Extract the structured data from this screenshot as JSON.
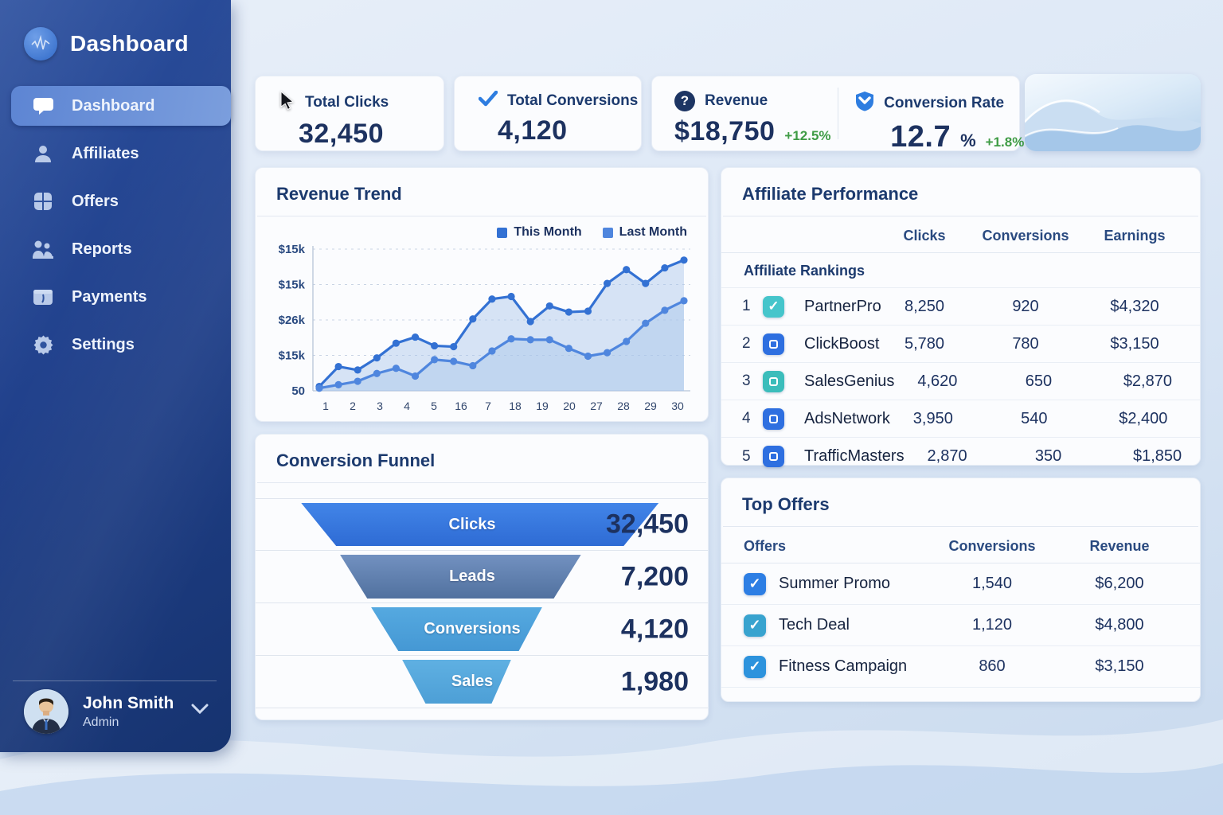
{
  "sidebar": {
    "app_title": "Dashboard",
    "items": [
      {
        "label": "Dashboard",
        "icon": "chat-icon",
        "active": true
      },
      {
        "label": "Affiliates",
        "icon": "person-icon",
        "active": false
      },
      {
        "label": "Offers",
        "icon": "grid-icon",
        "active": false
      },
      {
        "label": "Reports",
        "icon": "people-icon",
        "active": false
      },
      {
        "label": "Payments",
        "icon": "wallet-icon",
        "active": false
      },
      {
        "label": "Settings",
        "icon": "gear-icon",
        "active": false
      }
    ],
    "user": {
      "name": "John Smith",
      "role": "Admin"
    }
  },
  "stats": {
    "total_clicks": {
      "label": "Total Clicks",
      "value": "32,450"
    },
    "total_conversions": {
      "label": "Total Conversions",
      "value": "4,120"
    },
    "revenue": {
      "label": "Revenue",
      "value": "$18,750",
      "delta": "+12.5%"
    },
    "conversion_rate": {
      "label": "Conversion Rate",
      "value": "12.7",
      "unit": "%",
      "delta": "+1.8%"
    }
  },
  "revenue_trend": {
    "title": "Revenue Trend"
  },
  "chart_data": {
    "type": "line",
    "title": "Revenue Trend",
    "legend": [
      "This Month",
      "Last Month"
    ],
    "legend_position": "top-right",
    "grid": true,
    "x_tick_labels": [
      "1",
      "2",
      "3",
      "4",
      "5",
      "16",
      "7",
      "18",
      "19",
      "20",
      "27",
      "28",
      "29",
      "30"
    ],
    "y_tick_labels": [
      "$15k",
      "$15k",
      "$26k",
      "$15k",
      "50"
    ],
    "ylim": [
      0,
      16
    ],
    "unit": "$k (approximate, read from plot)",
    "series": [
      {
        "name": "This Month",
        "color": "#3371d3",
        "values": [
          0.5,
          2.8,
          2.4,
          3.8,
          5.5,
          6.2,
          5.2,
          5.1,
          8.3,
          10.6,
          10.9,
          8.0,
          9.8,
          9.1,
          9.2,
          12.4,
          14.0,
          12.4,
          14.2,
          15.1
        ]
      },
      {
        "name": "Last Month",
        "color": "#4f86de",
        "values": [
          0.3,
          0.7,
          1.1,
          2.0,
          2.6,
          1.7,
          3.6,
          3.4,
          2.9,
          4.6,
          6.0,
          5.9,
          5.9,
          4.9,
          4.0,
          4.4,
          5.7,
          7.8,
          9.3,
          10.4
        ]
      }
    ]
  },
  "funnel": {
    "title": "Conversion Funnel",
    "stages": [
      {
        "label": "Clicks",
        "value": "32,450",
        "color_top": "#4285e8",
        "color_bottom": "#2e6bd4"
      },
      {
        "label": "Leads",
        "value": "7,200",
        "color_top": "#7291c0",
        "color_bottom": "#51719f"
      },
      {
        "label": "Conversions",
        "value": "4,120",
        "color_top": "#55a9e0",
        "color_bottom": "#4598d4"
      },
      {
        "label": "Sales",
        "value": "1,980",
        "color_top": "#5fb0e2",
        "color_bottom": "#4d9fd6"
      }
    ]
  },
  "affiliate_performance": {
    "title": "Affiliate Performance",
    "columns": [
      "Clicks",
      "Conversions",
      "Earnings"
    ],
    "group_label": "Affiliate Rankings",
    "rows": [
      {
        "rank": "1",
        "name": "PartnerPro",
        "clicks": "8,250",
        "conversions": "920",
        "earnings": "$4,320",
        "icon_color": "#45c5cb",
        "icon_glyph": "check"
      },
      {
        "rank": "2",
        "name": "ClickBoost",
        "clicks": "5,780",
        "conversions": "780",
        "earnings": "$3,150",
        "icon_color": "#2e6fe0",
        "icon_glyph": "square"
      },
      {
        "rank": "3",
        "name": "SalesGenius",
        "clicks": "4,620",
        "conversions": "650",
        "earnings": "$2,870",
        "icon_color": "#3bbdbb",
        "icon_glyph": "square"
      },
      {
        "rank": "4",
        "name": "AdsNetwork",
        "clicks": "3,950",
        "conversions": "540",
        "earnings": "$2,400",
        "icon_color": "#2e6fe0",
        "icon_glyph": "square"
      },
      {
        "rank": "5",
        "name": "TrafficMasters",
        "clicks": "2,870",
        "conversions": "350",
        "earnings": "$1,850",
        "icon_color": "#2e6fe0",
        "icon_glyph": "square"
      }
    ]
  },
  "top_offers": {
    "title": "Top Offers",
    "columns": [
      "Offers",
      "Conversions",
      "Revenue"
    ],
    "rows": [
      {
        "name": "Summer Promo",
        "conversions": "1,540",
        "revenue": "$6,200",
        "checkbox_color": "#2d7ee4"
      },
      {
        "name": "Tech Deal",
        "conversions": "1,120",
        "revenue": "$4,800",
        "checkbox_color": "#38a3cf"
      },
      {
        "name": "Fitness Campaign",
        "conversions": "860",
        "revenue": "$3,150",
        "checkbox_color": "#2d93dd"
      }
    ]
  },
  "colors": {
    "sidebar_top": "#2c509f",
    "sidebar_bottom": "#16336f",
    "active_item": "#6b92d9",
    "accent_blue": "#2e6fe0",
    "positive_green": "#3f9c45",
    "heading_navy": "#1c3a6e",
    "value_navy": "#1d3260"
  }
}
